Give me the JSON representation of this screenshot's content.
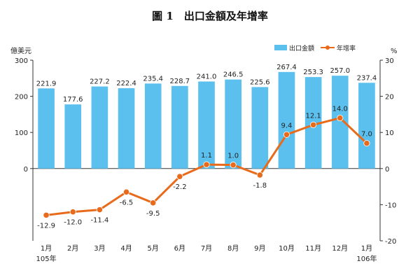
{
  "chart_data": {
    "type": "bar+line",
    "title": "圖 1　出口金額及年增率",
    "categories": [
      "1月",
      "2月",
      "3月",
      "4月",
      "5月",
      "6月",
      "7月",
      "8月",
      "9月",
      "10月",
      "11月",
      "12月",
      "1月"
    ],
    "category_years": [
      "105年",
      "",
      "",
      "",
      "",
      "",
      "",
      "",
      "",
      "",
      "",
      "",
      "106年"
    ],
    "series": [
      {
        "name": "出口金額",
        "type": "bar",
        "axis": "left",
        "color": "#5bc0ee",
        "values": [
          221.9,
          177.6,
          227.2,
          222.4,
          235.4,
          228.7,
          241.0,
          246.5,
          225.6,
          267.4,
          253.3,
          257.0,
          237.4
        ],
        "labels": [
          "221.9",
          "177.6",
          "227.2",
          "222.4",
          "235.4",
          "228.7",
          "241.0",
          "246.5",
          "225.6",
          "267.4",
          "253.3",
          "257.0",
          "237.4"
        ]
      },
      {
        "name": "年增率",
        "type": "line",
        "axis": "right",
        "color": "#e86b1c",
        "values": [
          -12.9,
          -12.0,
          -11.4,
          -6.5,
          -9.5,
          -2.2,
          1.1,
          1.0,
          -1.8,
          9.4,
          12.1,
          14.0,
          7.0
        ],
        "labels": [
          "-12.9",
          "-12.0",
          "-11.4",
          "-6.5",
          "-9.5",
          "-2.2",
          "1.1",
          "1.0",
          "-1.8",
          "9.4",
          "12.1",
          "14.0",
          "7.0"
        ]
      }
    ],
    "left_axis": {
      "unit": "億美元",
      "ticks": [
        "300",
        "200",
        "100",
        "0"
      ],
      "ylim": [
        -200,
        300
      ]
    },
    "right_axis": {
      "unit": "%",
      "ticks": [
        "30",
        "20",
        "10",
        "0",
        "-10",
        "-20"
      ],
      "ylim": [
        -20,
        30
      ]
    },
    "legend_position": "top-right",
    "grid": false
  }
}
